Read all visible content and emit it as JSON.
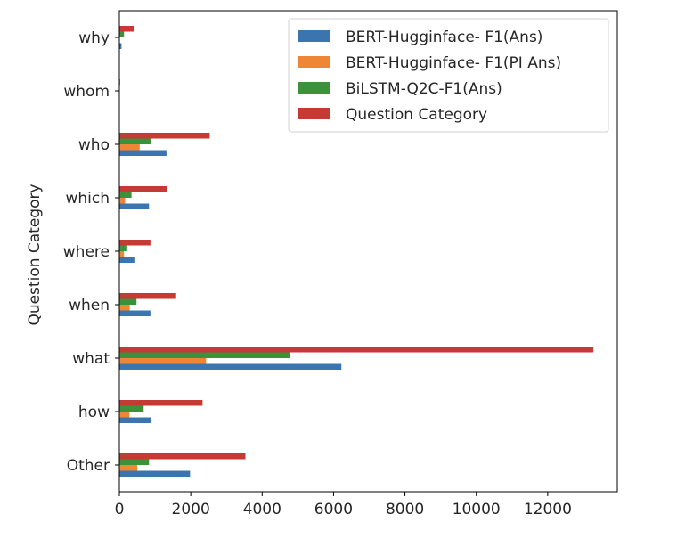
{
  "chart_data": {
    "type": "bar",
    "orientation": "horizontal",
    "categories": [
      "Other",
      "how",
      "what",
      "when",
      "where",
      "which",
      "who",
      "whom",
      "why"
    ],
    "series": [
      {
        "name": "BERT-Hugginface- F1(Ans)",
        "color": "#3a75b0",
        "values": [
          1980,
          880,
          6220,
          870,
          420,
          830,
          1320,
          0,
          60
        ]
      },
      {
        "name": "BERT-Hugginface- F1(PI Ans)",
        "color": "#ef8636",
        "values": [
          500,
          280,
          2430,
          290,
          130,
          160,
          570,
          0,
          10
        ]
      },
      {
        "name": "BiLSTM-Q2C-F1(Ans)",
        "color": "#3b923b",
        "values": [
          830,
          680,
          4790,
          480,
          220,
          340,
          890,
          0,
          130
        ]
      },
      {
        "name": "Question Category",
        "color": "#c53a32",
        "values": [
          3530,
          2330,
          13280,
          1590,
          870,
          1330,
          2530,
          20,
          400
        ]
      }
    ],
    "xlim": [
      0,
      13950
    ],
    "xticks": [
      "0",
      "2000",
      "4000",
      "6000",
      "8000",
      "10000",
      "12000"
    ],
    "ylabel": "Question Category",
    "xlabel": "",
    "legend_position": "upper right",
    "grid": false
  }
}
